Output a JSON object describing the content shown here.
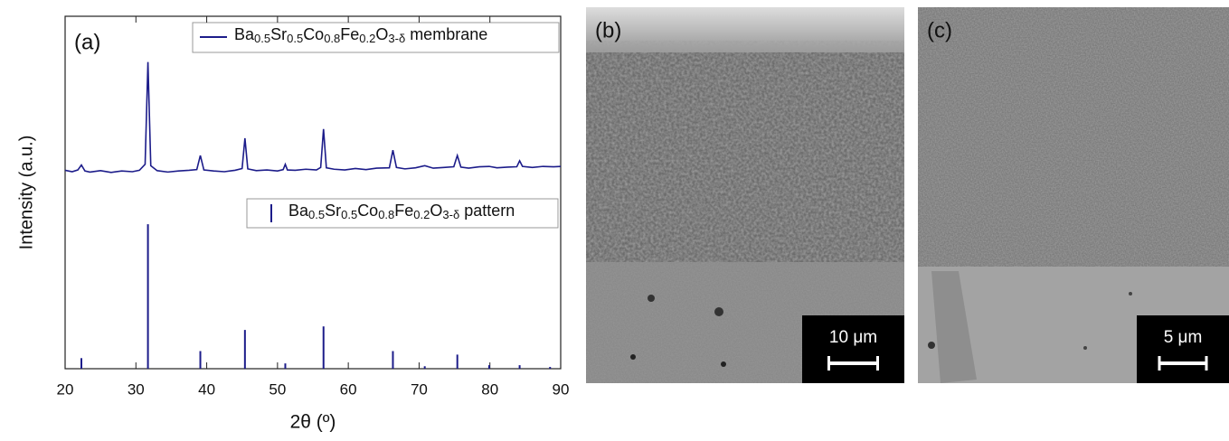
{
  "chart_data": {
    "type": "line",
    "panel_label": "(a)",
    "xlabel": "2θ (º)",
    "ylabel": "Intensity (a.u.)",
    "xlim": [
      20,
      90
    ],
    "xticks": [
      20,
      30,
      40,
      50,
      60,
      70,
      80,
      90
    ],
    "ylim": [
      0,
      100
    ],
    "series": [
      {
        "name": "Ba0.5Sr0.5Co0.8Fe0.2O3-δ membrane",
        "kind": "line",
        "color": "#1c1c8a",
        "x": [
          20,
          21,
          21.8,
          22.3,
          22.8,
          23.5,
          25,
          26.5,
          28,
          29.5,
          30.5,
          31.3,
          31.7,
          32.1,
          33,
          34.5,
          36,
          37.5,
          38.6,
          39.1,
          39.6,
          41,
          42.5,
          44,
          45,
          45.4,
          45.8,
          47,
          48.5,
          50,
          50.8,
          51.1,
          51.4,
          52.5,
          54,
          55.5,
          56.1,
          56.5,
          56.9,
          58,
          59.5,
          61,
          62.5,
          64,
          65.8,
          66.3,
          66.8,
          68,
          69.5,
          70.8,
          72,
          73.5,
          74.9,
          75.4,
          75.9,
          77,
          78.5,
          79.9,
          81,
          82.5,
          83.8,
          84.2,
          84.6,
          86,
          87.5,
          89,
          90
        ],
        "values": [
          56.3,
          55.9,
          56.4,
          57.8,
          56.1,
          55.8,
          56.2,
          55.7,
          56.1,
          55.9,
          56.3,
          58,
          87,
          57.6,
          56.2,
          55.8,
          56.1,
          56.3,
          56.5,
          60.5,
          56.4,
          56.1,
          55.9,
          56.3,
          56.8,
          65.4,
          56.7,
          56.2,
          56.4,
          56.1,
          56.5,
          58,
          56.4,
          56.3,
          56.6,
          56.4,
          57.1,
          68,
          57,
          56.6,
          56.4,
          56.8,
          56.5,
          56.9,
          57,
          62,
          57.1,
          56.7,
          57,
          57.6,
          56.9,
          57.1,
          57.3,
          60.5,
          57.2,
          56.9,
          57.3,
          57.4,
          57,
          57.2,
          57.3,
          59,
          57.4,
          57.1,
          57.4,
          57.3,
          57.4
        ]
      },
      {
        "name": "Ba0.5Sr0.5Co0.8Fe0.2O3-δ pattern",
        "kind": "stem",
        "color": "#1c1c8a",
        "x": [
          22.3,
          31.7,
          39.1,
          45.4,
          51.1,
          56.5,
          66.3,
          70.8,
          75.4,
          79.9,
          84.2,
          88.5
        ],
        "values": [
          3,
          41,
          5,
          11,
          1.5,
          12,
          5,
          0.7,
          4,
          1,
          1,
          0.5
        ]
      }
    ]
  },
  "panels": [
    {
      "label": "(b)",
      "scale_bar": "10 μm"
    },
    {
      "label": "(c)",
      "scale_bar": "5 μm"
    }
  ]
}
